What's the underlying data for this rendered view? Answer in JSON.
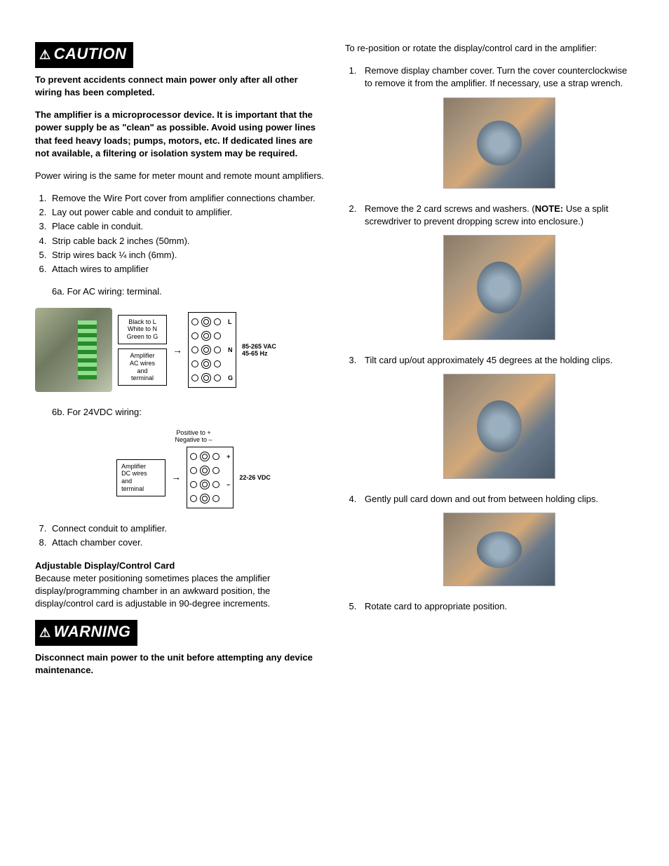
{
  "left": {
    "caution_badge": "CAUTION",
    "caution_p1": "To prevent accidents connect main power only after all other wiring has been completed.",
    "caution_p2": "The amplifier is a microprocessor device. It is important that the power supply be as \"clean\" as possible. Avoid using power lines that feed heavy loads; pumps, motors, etc. If dedicated lines are not available, a filtering or isolation system may be required.",
    "power_intro": "Power wiring is the same for meter mount and remote mount amplifiers.",
    "steps": [
      "Remove the Wire Port cover from amplifier connections chamber.",
      "Lay out power cable and conduit to amplifier.",
      "Place cable in conduit.",
      "Strip cable back 2 inches (50mm).",
      "Strip wires back ¼ inch (6mm).",
      "Attach wires to amplifier"
    ],
    "step6a": "6a. For AC wiring: terminal.",
    "ac_diagram": {
      "callout1_l1": "Black to L",
      "callout1_l2": "White to N",
      "callout1_l3": "Green to G",
      "callout2_l1": "Amplifier",
      "callout2_l2": "AC wires",
      "callout2_l3": "and",
      "callout2_l4": "terminal",
      "labels": [
        "L",
        "N",
        "G"
      ],
      "volt_l1": "85-265 VAC",
      "volt_l2": "45-65 Hz"
    },
    "step6b": "6b. For 24VDC wiring:",
    "dc_diagram": {
      "top_l1": "Positive to +",
      "top_l2": "Negative to –",
      "callout_l1": "Amplifier",
      "callout_l2": "DC wires",
      "callout_l3": "and",
      "callout_l4": "terminal",
      "labels": [
        "+",
        "–"
      ],
      "volt": "22-26 VDC"
    },
    "steps_7_8": [
      "Connect conduit to amplifier.",
      "Attach chamber cover."
    ],
    "adj_title": "Adjustable Display/Control Card",
    "adj_body": "Because meter positioning sometimes places the amplifier display/programming chamber in an awkward position, the display/control card is adjustable in 90-degree increments.",
    "warning_badge": "WARNING",
    "warning_body": "Disconnect main power to the unit before attempting any device maintenance."
  },
  "right": {
    "intro": "To re-position or rotate the display/control card in the amplifier:",
    "step1": "Remove display chamber cover. Turn the cover counterclockwise to remove it from the amplifier. If necessary, use a strap wrench.",
    "step2_a": "Remove the 2 card screws and washers. (",
    "step2_note": "NOTE:",
    "step2_b": " Use a split screwdriver to prevent dropping screw into enclosure.)",
    "step3": "Tilt card up/out approximately 45 degrees at the holding clips.",
    "step4": "Gently pull card down and out from between holding clips.",
    "step5": "Rotate card to appropriate position.",
    "photo_sizes": {
      "p1_w": 160,
      "p1_h": 130,
      "p2_w": 160,
      "p2_h": 150,
      "p3_w": 160,
      "p3_h": 150,
      "p4_w": 160,
      "p4_h": 105
    }
  }
}
